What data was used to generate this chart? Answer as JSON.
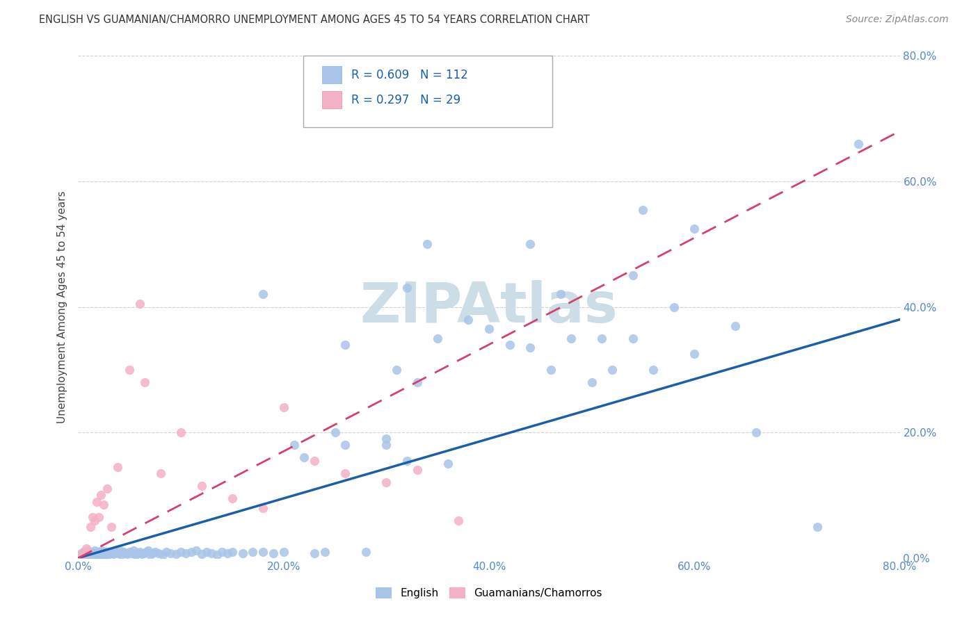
{
  "title": "ENGLISH VS GUAMANIAN/CHAMORRO UNEMPLOYMENT AMONG AGES 45 TO 54 YEARS CORRELATION CHART",
  "source": "Source: ZipAtlas.com",
  "ylabel": "Unemployment Among Ages 45 to 54 years",
  "xlim": [
    0.0,
    0.8
  ],
  "ylim": [
    0.0,
    0.8
  ],
  "xticks": [
    0.0,
    0.2,
    0.4,
    0.6,
    0.8
  ],
  "yticks": [
    0.0,
    0.2,
    0.4,
    0.6,
    0.8
  ],
  "xtick_labels": [
    "0.0%",
    "20.0%",
    "40.0%",
    "60.0%",
    "80.0%"
  ],
  "ytick_labels_left": [
    "",
    "",
    "",
    "",
    ""
  ],
  "ytick_labels_right": [
    "0.0%",
    "20.0%",
    "40.0%",
    "60.0%",
    "80.0%"
  ],
  "english_color": "#a8c4e8",
  "chamorro_color": "#f5b0c5",
  "english_line_color": "#1a5faa",
  "chamorro_line_color": "#d44070",
  "watermark": "ZIPAtlas",
  "watermark_color": "#ccdde8",
  "legend_text_color": "#1a5faa",
  "title_color": "#333333",
  "source_color": "#888888",
  "axis_label_color": "#444444",
  "tick_color": "#5588cc",
  "grid_color": "#cccccc",
  "english_line_x0": 0.0,
  "english_line_y0": 0.0,
  "english_line_x1": 0.8,
  "english_line_y1": 0.38,
  "chamorro_line_x0": 0.0,
  "chamorro_line_y0": 0.0,
  "chamorro_line_x1": 0.8,
  "chamorro_line_y1": 0.68,
  "english_scatter_x": [
    0.002,
    0.003,
    0.004,
    0.005,
    0.006,
    0.007,
    0.008,
    0.009,
    0.01,
    0.011,
    0.012,
    0.013,
    0.014,
    0.015,
    0.016,
    0.017,
    0.018,
    0.019,
    0.02,
    0.021,
    0.022,
    0.023,
    0.024,
    0.025,
    0.026,
    0.027,
    0.028,
    0.029,
    0.03,
    0.032,
    0.034,
    0.036,
    0.038,
    0.04,
    0.042,
    0.044,
    0.046,
    0.048,
    0.05,
    0.052,
    0.054,
    0.056,
    0.058,
    0.06,
    0.062,
    0.064,
    0.066,
    0.068,
    0.07,
    0.072,
    0.075,
    0.078,
    0.082,
    0.086,
    0.09,
    0.095,
    0.1,
    0.105,
    0.11,
    0.115,
    0.12,
    0.125,
    0.13,
    0.135,
    0.14,
    0.145,
    0.15,
    0.16,
    0.17,
    0.18,
    0.19,
    0.2,
    0.21,
    0.22,
    0.23,
    0.24,
    0.25,
    0.26,
    0.28,
    0.3,
    0.31,
    0.32,
    0.33,
    0.34,
    0.35,
    0.36,
    0.38,
    0.4,
    0.42,
    0.44,
    0.46,
    0.48,
    0.5,
    0.52,
    0.54,
    0.56,
    0.58,
    0.6,
    0.64,
    0.66,
    0.72,
    0.76,
    0.18,
    0.26,
    0.3,
    0.32,
    0.44,
    0.47,
    0.51,
    0.54,
    0.55,
    0.6
  ],
  "english_scatter_y": [
    0.005,
    0.008,
    0.005,
    0.01,
    0.006,
    0.008,
    0.005,
    0.012,
    0.008,
    0.005,
    0.01,
    0.006,
    0.008,
    0.005,
    0.012,
    0.008,
    0.005,
    0.01,
    0.006,
    0.008,
    0.005,
    0.012,
    0.008,
    0.005,
    0.01,
    0.006,
    0.008,
    0.005,
    0.01,
    0.008,
    0.006,
    0.01,
    0.008,
    0.012,
    0.005,
    0.01,
    0.008,
    0.006,
    0.01,
    0.008,
    0.012,
    0.005,
    0.008,
    0.01,
    0.006,
    0.008,
    0.01,
    0.012,
    0.005,
    0.008,
    0.01,
    0.008,
    0.005,
    0.01,
    0.008,
    0.006,
    0.01,
    0.008,
    0.01,
    0.012,
    0.006,
    0.01,
    0.008,
    0.005,
    0.01,
    0.008,
    0.01,
    0.008,
    0.01,
    0.01,
    0.008,
    0.01,
    0.18,
    0.16,
    0.008,
    0.01,
    0.2,
    0.18,
    0.01,
    0.18,
    0.3,
    0.155,
    0.28,
    0.5,
    0.35,
    0.15,
    0.38,
    0.365,
    0.34,
    0.335,
    0.3,
    0.35,
    0.28,
    0.3,
    0.35,
    0.3,
    0.4,
    0.525,
    0.37,
    0.2,
    0.05,
    0.66,
    0.42,
    0.34,
    0.19,
    0.43,
    0.5,
    0.42,
    0.35,
    0.45,
    0.555,
    0.325
  ],
  "chamorro_scatter_x": [
    0.003,
    0.005,
    0.007,
    0.008,
    0.01,
    0.012,
    0.014,
    0.016,
    0.018,
    0.02,
    0.022,
    0.025,
    0.028,
    0.032,
    0.038,
    0.05,
    0.065,
    0.08,
    0.1,
    0.12,
    0.15,
    0.18,
    0.2,
    0.23,
    0.26,
    0.3,
    0.33,
    0.37,
    0.06
  ],
  "chamorro_scatter_y": [
    0.005,
    0.01,
    0.008,
    0.015,
    0.01,
    0.05,
    0.065,
    0.06,
    0.09,
    0.065,
    0.1,
    0.085,
    0.11,
    0.05,
    0.145,
    0.3,
    0.28,
    0.135,
    0.2,
    0.115,
    0.095,
    0.08,
    0.24,
    0.155,
    0.135,
    0.12,
    0.14,
    0.06,
    0.405
  ]
}
